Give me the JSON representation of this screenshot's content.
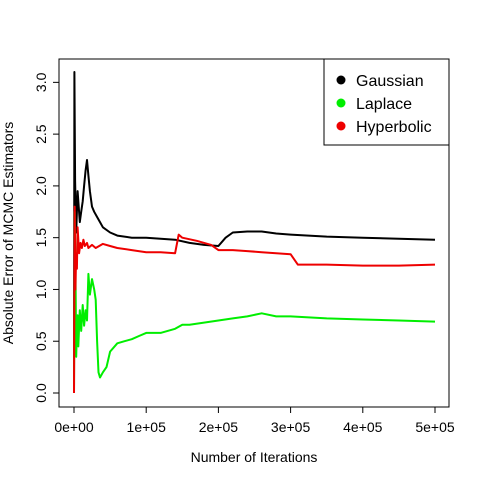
{
  "chart_data": {
    "type": "line",
    "title": "",
    "xlabel": "Number of Iterations",
    "ylabel": "Absolute Error of MCMC Estimators",
    "xlim": [
      0,
      500000
    ],
    "ylim": [
      0,
      3.1
    ],
    "x_ticks": [
      0,
      100000,
      200000,
      300000,
      400000,
      500000
    ],
    "x_tick_labels": [
      "0e+00",
      "1e+05",
      "2e+05",
      "3e+05",
      "4e+05",
      "5e+05"
    ],
    "y_ticks": [
      0,
      0.5,
      1,
      1.5,
      2,
      2.5,
      3
    ],
    "y_tick_labels": [
      "0.0",
      "0.5",
      "1.0",
      "1.5",
      "2.0",
      "2.5",
      "3.0"
    ],
    "grid": false,
    "legend_position": "top-right",
    "colors": {
      "Gaussian": "#000000",
      "Laplace": "#00ee00",
      "Hyperbolic": "#ee0000"
    },
    "series": [
      {
        "name": "Gaussian",
        "color": "#000000",
        "x": [
          0,
          500,
          1500,
          3000,
          5000,
          8000,
          10000,
          12000,
          14000,
          16000,
          18000,
          20000,
          22000,
          25000,
          28000,
          32000,
          36000,
          40000,
          50000,
          60000,
          80000,
          100000,
          120000,
          140000,
          160000,
          180000,
          200000,
          210000,
          220000,
          240000,
          260000,
          280000,
          300000,
          350000,
          400000,
          450000,
          500000
        ],
        "y": [
          0.0,
          3.1,
          2.05,
          1.55,
          1.95,
          1.65,
          1.75,
          1.85,
          2.0,
          2.15,
          2.25,
          2.1,
          1.95,
          1.8,
          1.75,
          1.7,
          1.65,
          1.6,
          1.55,
          1.52,
          1.5,
          1.5,
          1.49,
          1.48,
          1.45,
          1.43,
          1.42,
          1.5,
          1.55,
          1.56,
          1.56,
          1.54,
          1.53,
          1.51,
          1.5,
          1.49,
          1.48
        ]
      },
      {
        "name": "Laplace",
        "color": "#00ee00",
        "x": [
          0,
          1000,
          2000,
          3000,
          4000,
          5000,
          6000,
          8000,
          10000,
          12000,
          14000,
          16000,
          18000,
          20000,
          22000,
          25000,
          28000,
          30000,
          32000,
          34000,
          36000,
          40000,
          45000,
          50000,
          60000,
          70000,
          80000,
          90000,
          100000,
          120000,
          140000,
          150000,
          160000,
          180000,
          200000,
          220000,
          240000,
          260000,
          280000,
          300000,
          350000,
          400000,
          450000,
          500000
        ],
        "y": [
          0.0,
          1.75,
          1.3,
          0.35,
          0.6,
          0.75,
          0.45,
          0.8,
          0.6,
          0.85,
          0.65,
          0.8,
          0.7,
          1.15,
          0.95,
          1.1,
          1.0,
          0.9,
          0.5,
          0.2,
          0.15,
          0.2,
          0.25,
          0.4,
          0.48,
          0.5,
          0.52,
          0.55,
          0.58,
          0.58,
          0.62,
          0.66,
          0.66,
          0.68,
          0.7,
          0.72,
          0.74,
          0.77,
          0.74,
          0.74,
          0.72,
          0.71,
          0.7,
          0.69
        ]
      },
      {
        "name": "Hyperbolic",
        "color": "#ee0000",
        "x": [
          0,
          1000,
          2000,
          3000,
          4000,
          5000,
          7000,
          9000,
          11000,
          13000,
          15000,
          18000,
          20000,
          25000,
          30000,
          40000,
          50000,
          60000,
          80000,
          100000,
          120000,
          140000,
          145000,
          150000,
          170000,
          190000,
          200000,
          220000,
          240000,
          260000,
          280000,
          300000,
          310000,
          350000,
          400000,
          450000,
          500000
        ],
        "y": [
          0.0,
          1.8,
          1.0,
          1.35,
          1.2,
          1.6,
          1.35,
          1.45,
          1.4,
          1.48,
          1.42,
          1.45,
          1.4,
          1.43,
          1.4,
          1.44,
          1.42,
          1.4,
          1.38,
          1.36,
          1.36,
          1.35,
          1.53,
          1.5,
          1.47,
          1.43,
          1.38,
          1.38,
          1.37,
          1.36,
          1.35,
          1.34,
          1.24,
          1.24,
          1.23,
          1.23,
          1.24
        ]
      }
    ]
  }
}
